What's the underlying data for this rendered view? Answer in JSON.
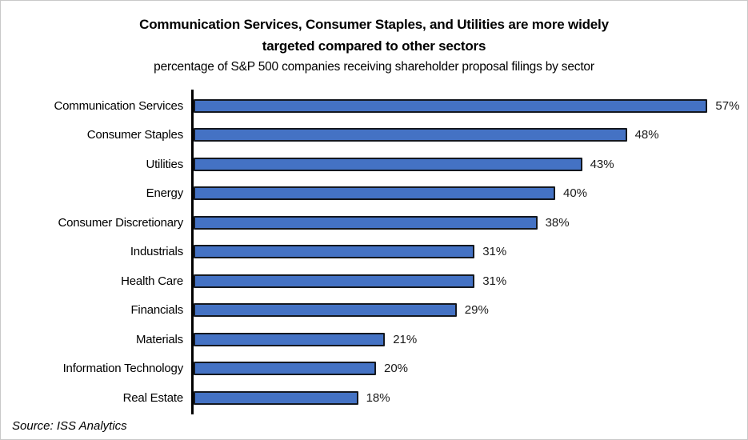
{
  "header": {
    "title_line1": "Communication Services, Consumer Staples, and Utilities are more widely",
    "title_line2": "targeted compared to other sectors",
    "subtitle": "percentage of S&P 500 companies receiving shareholder proposal filings by sector"
  },
  "chart_data": {
    "type": "bar",
    "orientation": "horizontal",
    "title": "Communication Services, Consumer Staples, and Utilities are more widely targeted compared to other sectors",
    "subtitle": "percentage of S&P 500 companies receiving shareholder proposal filings by sector",
    "categories": [
      "Communication Services",
      "Consumer Staples",
      "Utilities",
      "Energy",
      "Consumer Discretionary",
      "Industrials",
      "Health Care",
      "Financials",
      "Materials",
      "Information Technology",
      "Real Estate"
    ],
    "values": [
      57,
      48,
      43,
      40,
      38,
      31,
      31,
      29,
      21,
      20,
      18
    ],
    "value_suffix": "%",
    "data_labels": true,
    "xlabel": "",
    "ylabel": "",
    "xlim": [
      0,
      62
    ],
    "grid": false,
    "legend": false,
    "colors": {
      "bar_fill": "#4472C4",
      "bar_border": "#14181f",
      "axis": "#000000",
      "text": "#000000"
    }
  },
  "footer": {
    "source": "Source: ISS Analytics"
  }
}
